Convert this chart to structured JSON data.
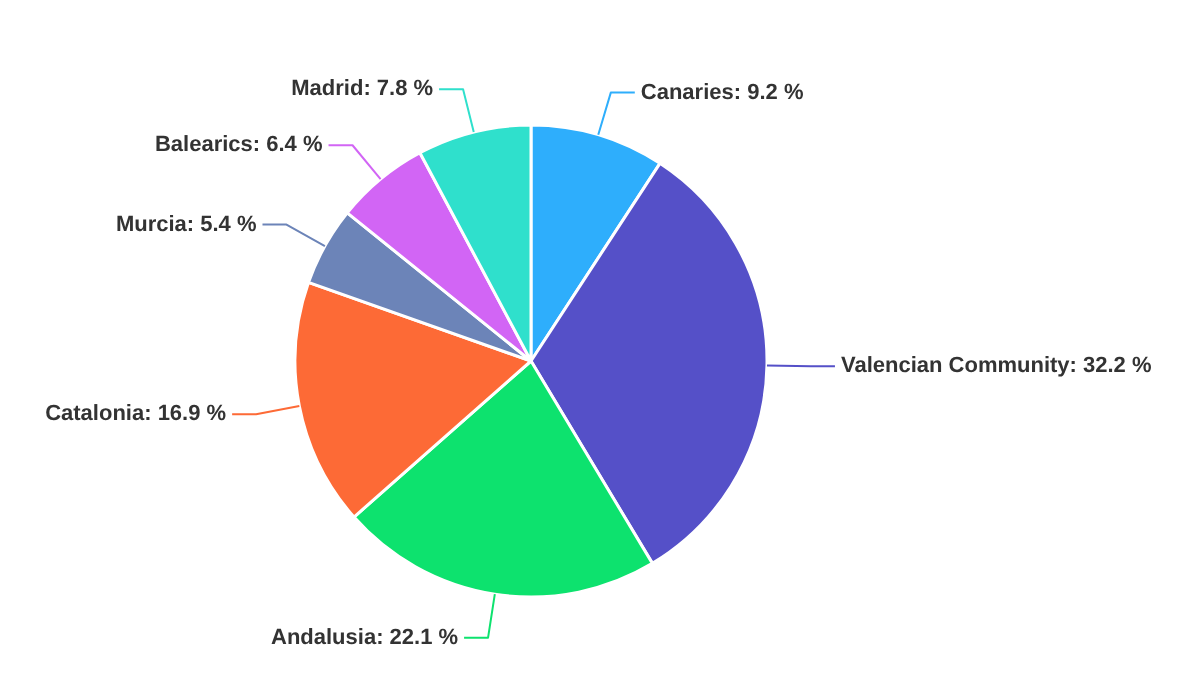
{
  "chart_data": {
    "type": "pie",
    "categories": [
      "Canaries",
      "Valencian Community",
      "Andalusia",
      "Catalonia",
      "Murcia",
      "Balearics",
      "Madrid"
    ],
    "values": [
      9.2,
      32.2,
      22.1,
      16.9,
      5.4,
      6.4,
      7.8
    ],
    "value_labels": [
      "9.2 %",
      "32.2 %",
      "22.1 %",
      "16.9 %",
      "5.4 %",
      "6.4 %",
      "7.8 %"
    ],
    "colors": [
      "#2eaefc",
      "#5550c8",
      "#0de26e",
      "#fd6a36",
      "#6c84b8",
      "#d265f5",
      "#2fe0cc"
    ]
  }
}
